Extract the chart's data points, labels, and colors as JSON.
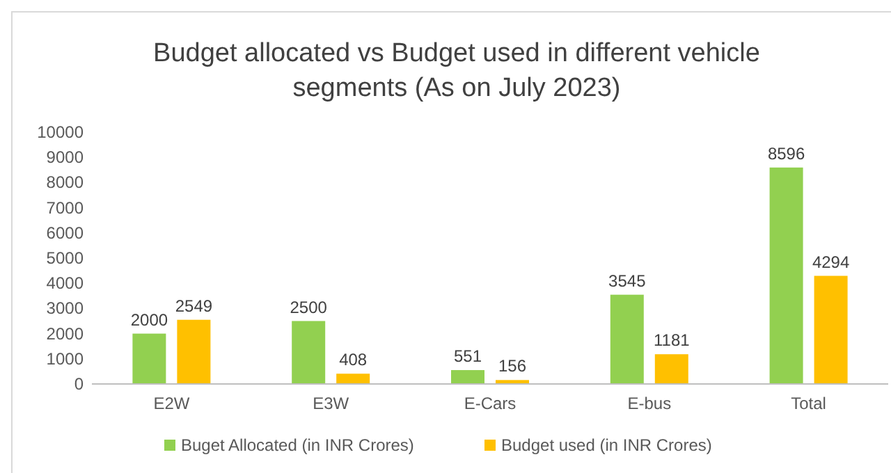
{
  "chart_data": {
    "type": "bar",
    "title": "Budget allocated vs Budget used in different vehicle segments (As on July 2023)",
    "categories": [
      "E2W",
      "E3W",
      "E-Cars",
      "E-bus",
      "Total"
    ],
    "series": [
      {
        "name": "Buget Allocated (in INR Crores)",
        "color": "#92d050",
        "values": [
          2000,
          2500,
          551,
          3545,
          8596
        ]
      },
      {
        "name": "Budget used (in INR Crores)",
        "color": "#ffc000",
        "values": [
          2549,
          408,
          156,
          1181,
          4294
        ]
      }
    ],
    "ylim": [
      0,
      10000
    ],
    "yticks": [
      0,
      1000,
      2000,
      3000,
      4000,
      5000,
      6000,
      7000,
      8000,
      9000,
      10000
    ],
    "data_labels": true,
    "legend": "bottom",
    "grid": false
  }
}
